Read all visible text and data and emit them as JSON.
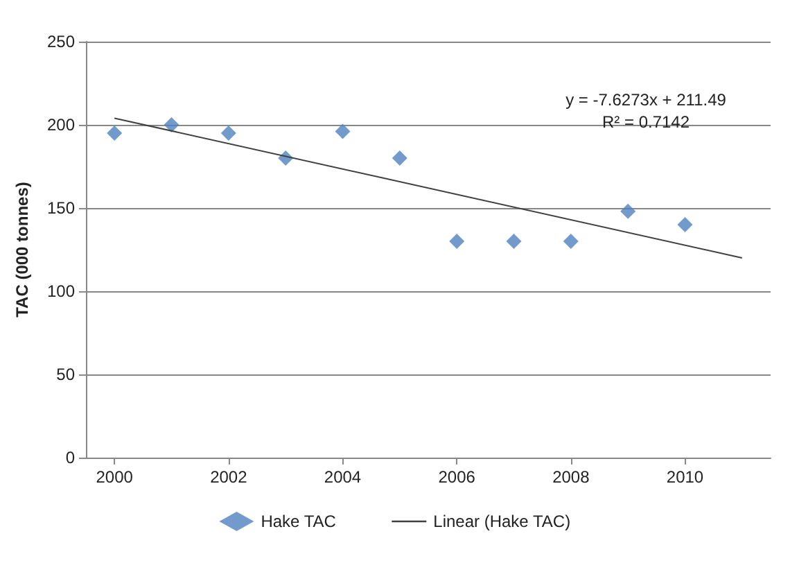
{
  "chart_data": {
    "type": "scatter",
    "ylabel": "TAC (000 tonnes)",
    "x": [
      2000,
      2001,
      2002,
      2003,
      2004,
      2005,
      2006,
      2007,
      2008,
      2009,
      2010
    ],
    "series": [
      {
        "name": "Hake TAC",
        "color": "#4f81bd",
        "marker": "diamond",
        "values": [
          195,
          200,
          195,
          180,
          196,
          180,
          130,
          130,
          130,
          148,
          140
        ]
      },
      {
        "name": "Linear (Hake TAC)",
        "type": "line",
        "color": "#404040",
        "marker": "none",
        "x": [
          2000,
          2011
        ],
        "values": [
          204,
          120
        ]
      }
    ],
    "xlim": [
      1999.5,
      2011.5
    ],
    "xticks": [
      2000,
      2002,
      2004,
      2006,
      2008,
      2010
    ],
    "ylim": [
      0,
      250
    ],
    "yticks": [
      0,
      50,
      100,
      150,
      200,
      250
    ],
    "grid": "y",
    "legend": "bottom",
    "annotations": [
      "y = -7.6273x + 211.49",
      "R² = 0.7142"
    ]
  }
}
